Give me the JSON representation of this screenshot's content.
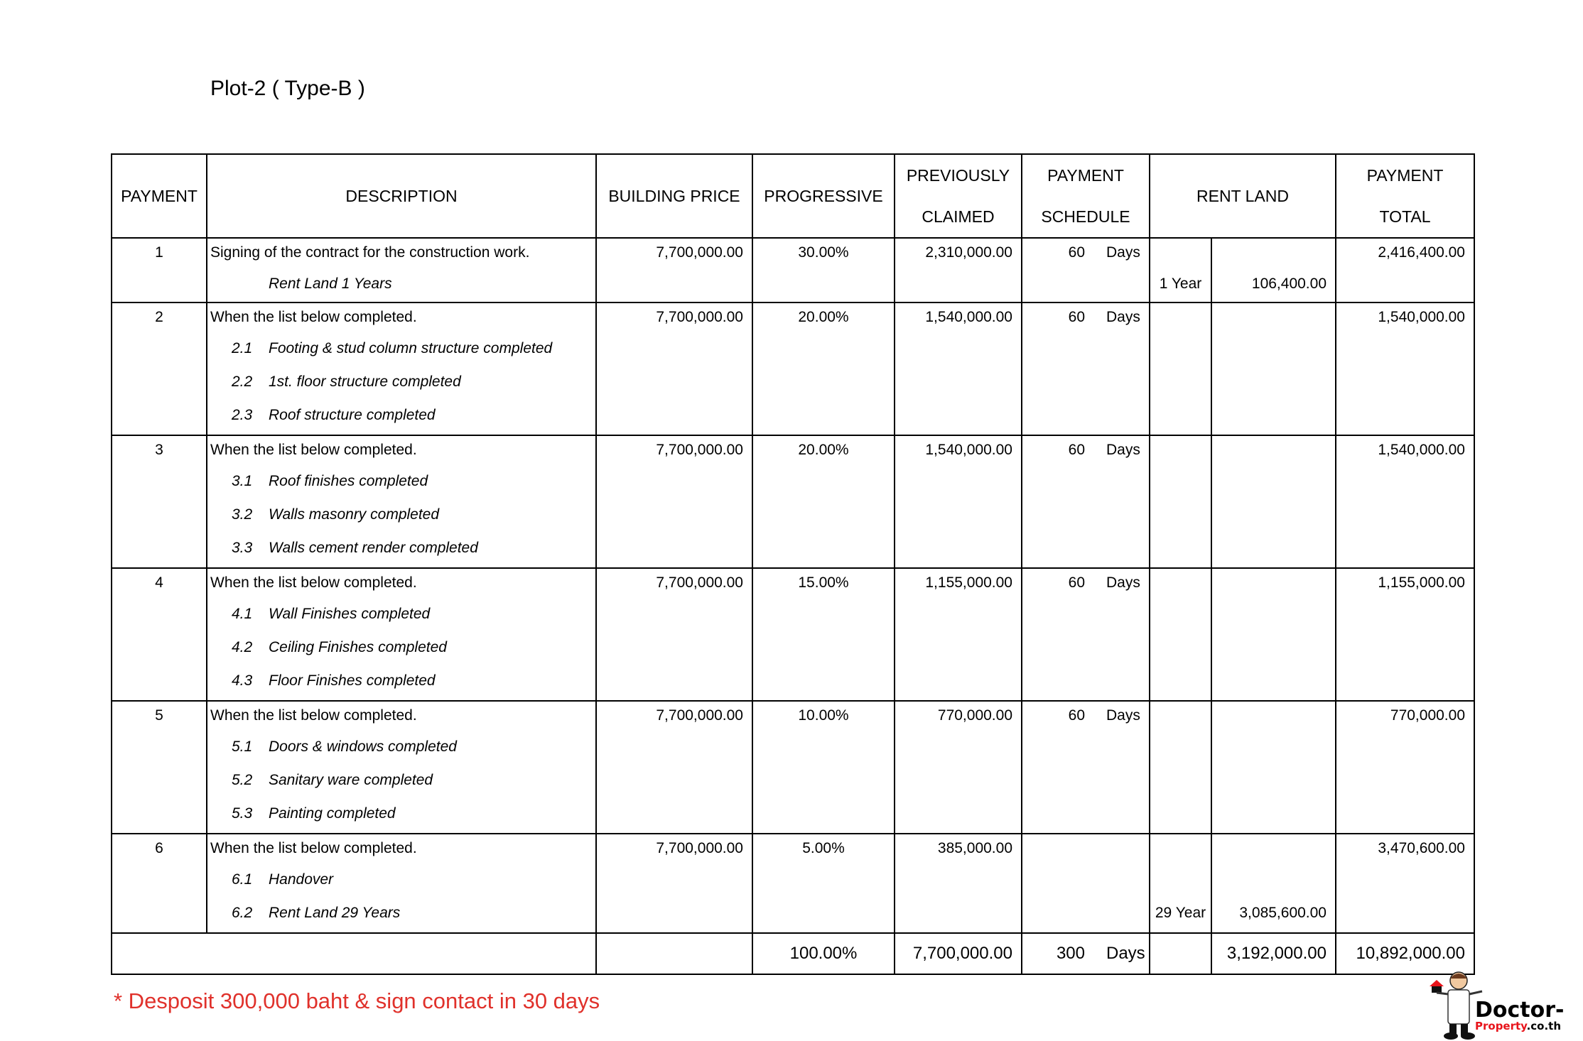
{
  "title": "Plot-2 ( Type-B )",
  "headers": {
    "payment": "PAYMENT",
    "description": "DESCRIPTION",
    "building_price": "BUILDING PRICE",
    "progressive": "PROGRESSIVE",
    "previously_claimed_1": "PREVIOUSLY",
    "previously_claimed_2": "CLAIMED",
    "payment_schedule_1": "PAYMENT",
    "payment_schedule_2": "SCHEDULE",
    "rent_land": "RENT LAND",
    "payment_total_1": "PAYMENT",
    "payment_total_2": "TOTAL"
  },
  "rows": [
    {
      "no": "1",
      "main": "Signing of the contract for the construction work.",
      "subs": [
        {
          "num": "",
          "text": "Rent Land 1 Years"
        }
      ],
      "price": "7,700,000.00",
      "progressive": "30.00%",
      "claimed": "2,310,000.00",
      "days": "60",
      "unit": "Days",
      "rent_year": "1 Year",
      "rent_amount": "106,400.00",
      "rent_line": 1,
      "total": "2,416,400.00"
    },
    {
      "no": "2",
      "main": "When the list below completed.",
      "subs": [
        {
          "num": "2.1",
          "text": "Footing & stud column structure completed"
        },
        {
          "num": "2.2",
          "text": "1st. floor structure completed"
        },
        {
          "num": "2.3",
          "text": "Roof structure completed"
        }
      ],
      "price": "7,700,000.00",
      "progressive": "20.00%",
      "claimed": "1,540,000.00",
      "days": "60",
      "unit": "Days",
      "total": "1,540,000.00"
    },
    {
      "no": "3",
      "main": "When the list below completed.",
      "subs": [
        {
          "num": "3.1",
          "text": "Roof finishes completed"
        },
        {
          "num": "3.2",
          "text": "Walls masonry completed"
        },
        {
          "num": "3.3",
          "text": "Walls cement render completed"
        }
      ],
      "price": "7,700,000.00",
      "progressive": "20.00%",
      "claimed": "1,540,000.00",
      "days": "60",
      "unit": "Days",
      "total": "1,540,000.00"
    },
    {
      "no": "4",
      "main": "When the list below completed.",
      "subs": [
        {
          "num": "4.1",
          "text": "Wall Finishes completed"
        },
        {
          "num": "4.2",
          "text": "Ceiling Finishes completed"
        },
        {
          "num": "4.3",
          "text": "Floor Finishes completed"
        }
      ],
      "price": "7,700,000.00",
      "progressive": "15.00%",
      "claimed": "1,155,000.00",
      "days": "60",
      "unit": "Days",
      "total": "1,155,000.00"
    },
    {
      "no": "5",
      "main": "When the list below completed.",
      "subs": [
        {
          "num": "5.1",
          "text": "Doors & windows completed"
        },
        {
          "num": "5.2",
          "text": "Sanitary ware completed"
        },
        {
          "num": "5.3",
          "text": "Painting completed"
        }
      ],
      "price": "7,700,000.00",
      "progressive": "10.00%",
      "claimed": "770,000.00",
      "days": "60",
      "unit": "Days",
      "total": "770,000.00"
    },
    {
      "no": "6",
      "main": "When the list below completed.",
      "subs": [
        {
          "num": "6.1",
          "text": "Handover"
        },
        {
          "num": "6.2",
          "text": "Rent Land 29 Years"
        }
      ],
      "price": "7,700,000.00",
      "progressive": "5.00%",
      "claimed": "385,000.00",
      "days": "",
      "unit": "",
      "rent_year": "29 Year",
      "rent_amount": "3,085,600.00",
      "rent_line": 2,
      "total": "3,470,600.00"
    }
  ],
  "totals": {
    "progressive": "100.00%",
    "claimed": "7,700,000.00",
    "days": "300",
    "unit": "Days",
    "rent_amount": "3,192,000.00",
    "total": "10,892,000.00"
  },
  "footer_note": "* Desposit 300,000 baht & sign contact in 30 days",
  "logo": {
    "text_1": "Doctor-",
    "text_2": "Property",
    ".co.th": ".co.th"
  },
  "colors": {
    "note": "#e0312b",
    "logo_red": "#e8141b"
  }
}
